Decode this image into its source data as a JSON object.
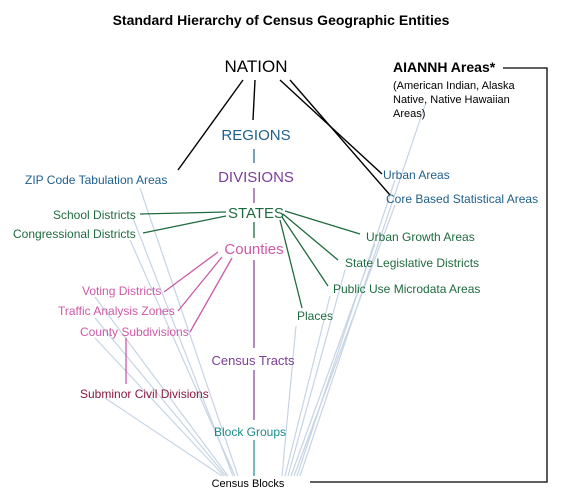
{
  "title": "Standard Hierarchy of Census Geographic Entities",
  "colors": {
    "black": "#000000",
    "blue": "#1f5f8b",
    "purple": "#7b3f97",
    "green": "#1f6b3f",
    "pink": "#cc5aa8",
    "maroon": "#8a1a3e",
    "teal": "#1b8a8a",
    "lightblue": "#c6d4e4"
  },
  "nodes": {
    "nation": "NATION",
    "regions": "REGIONS",
    "divisions": "DIVISIONS",
    "states": "STATES",
    "counties": "Counties",
    "census_tracts": "Census Tracts",
    "block_groups": "Block Groups",
    "census_blocks": "Census Blocks",
    "zcta": "ZIP Code Tabulation Areas",
    "school_districts": "School Districts",
    "congressional_districts": "Congressional Districts",
    "voting_districts": "Voting Districts",
    "traffic_analysis_zones": "Traffic Analysis Zones",
    "county_subdivisions": "County Subdivisions",
    "subminor_civil_divisions": "Subminor Civil Divisions",
    "urban_areas": "Urban Areas",
    "cbsa": "Core Based Statistical Areas",
    "urban_growth_areas": "Urban Growth Areas",
    "state_legislative_districts": "State Legislative Districts",
    "puma": "Public Use Microdata Areas",
    "places": "Places",
    "aiannh_title": "AIANNH Areas*",
    "aiannh_sub1": "(American Indian, Alaska",
    "aiannh_sub2": "Native, Native Hawaiian",
    "aiannh_sub3": "Areas)"
  }
}
